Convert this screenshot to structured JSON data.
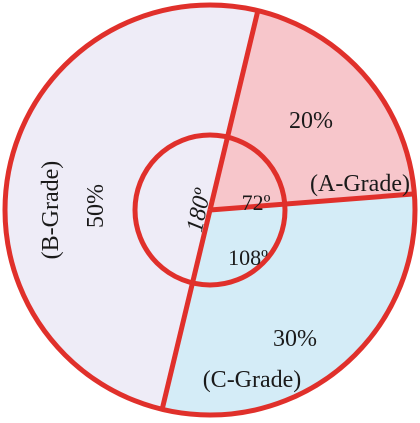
{
  "chart_data": {
    "type": "pie",
    "categories": [
      "A-Grade",
      "B-Grade",
      "C-Grade"
    ],
    "values": [
      20,
      50,
      30
    ],
    "slices": [
      {
        "category": "(A-Grade)",
        "percent_label": "20%",
        "angle_label": "72º",
        "value": 20,
        "angle": 72,
        "color": "#f7c6cb"
      },
      {
        "category": "(B-Grade)",
        "percent_label": "50%",
        "angle_label": "180º",
        "value": 50,
        "angle": 180,
        "color": "#eeecf7"
      },
      {
        "category": "(C-Grade)",
        "percent_label": "30%",
        "angle_label": "108º",
        "value": 30,
        "angle": 108,
        "color": "#d4ecf7"
      }
    ],
    "outline_color": "#e0302b"
  }
}
